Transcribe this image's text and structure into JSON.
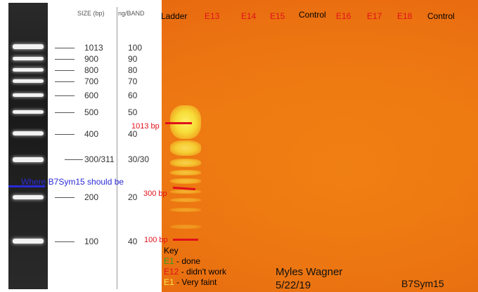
{
  "ladder_reference": {
    "size_header": "SIZE (bp)",
    "ng_header": "ng/BAND",
    "rows": [
      {
        "size": "1013",
        "ng": "100"
      },
      {
        "size": "900",
        "ng": "90"
      },
      {
        "size": "800",
        "ng": "80"
      },
      {
        "size": "700",
        "ng": "70"
      },
      {
        "size": "600",
        "ng": "60"
      },
      {
        "size": "500",
        "ng": "50"
      },
      {
        "size": "400",
        "ng": "40"
      },
      {
        "size": "300/311",
        "ng": "30/30"
      },
      {
        "size": "200",
        "ng": "20"
      },
      {
        "size": "100",
        "ng": "40"
      }
    ],
    "expected_note": "Where B7Sym15 should be"
  },
  "gel": {
    "lanes": [
      {
        "label": "Ladder",
        "color": "#000000"
      },
      {
        "label": "E13",
        "color": "#e0101a"
      },
      {
        "label": "E14",
        "color": "#e0101a"
      },
      {
        "label": "E15",
        "color": "#e0101a"
      },
      {
        "label": "Control",
        "color": "#000000"
      },
      {
        "label": "E16",
        "color": "#e0101a"
      },
      {
        "label": "E17",
        "color": "#e0101a"
      },
      {
        "label": "E18",
        "color": "#e0101a"
      },
      {
        "label": "Control",
        "color": "#000000"
      }
    ],
    "markers": {
      "m1013": "1013 bp",
      "m300": "300 bp",
      "m100": "100 bp"
    }
  },
  "key": {
    "title": "Key",
    "rows": [
      {
        "code": "E1",
        "text": " - done",
        "color": "#2f9e23"
      },
      {
        "code": "E12",
        "text": " - didn't work",
        "color": "#e0101a"
      },
      {
        "code": "E1",
        "text": " - Very faint",
        "color": "#f6e94a"
      }
    ]
  },
  "author": {
    "name": "Myles Wagner",
    "date": "5/22/19"
  },
  "sample_id": "B7Sym15"
}
